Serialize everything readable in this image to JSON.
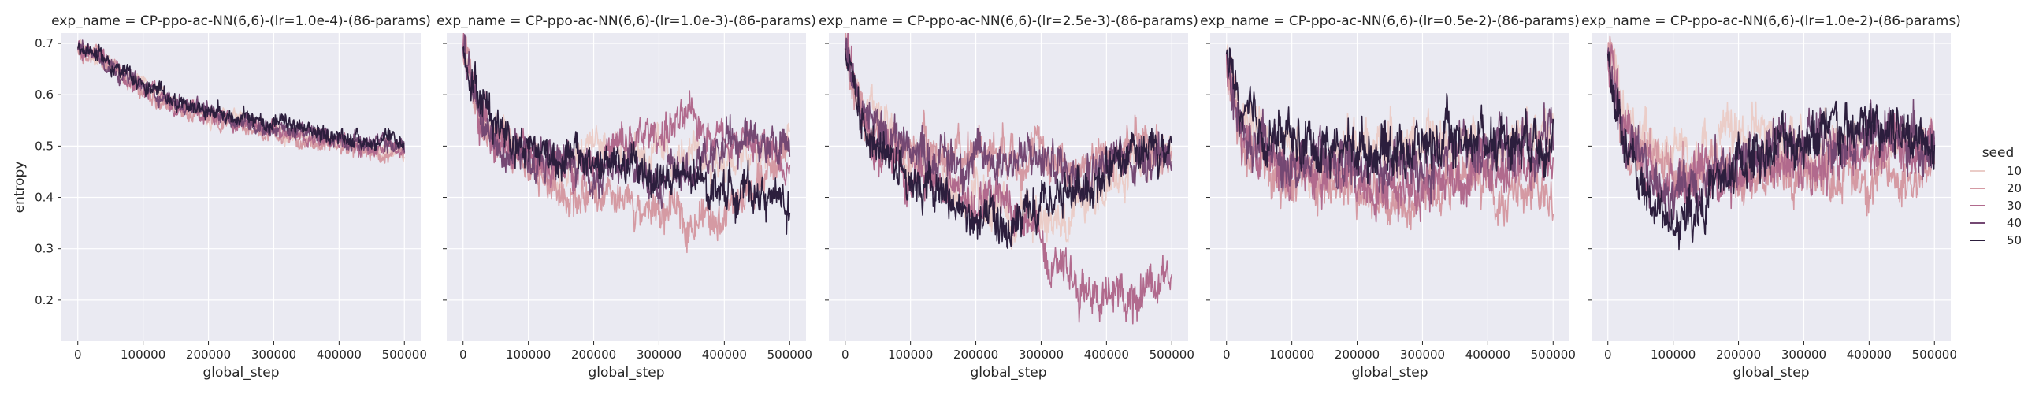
{
  "chart_data": {
    "type": "line",
    "figure": "faceted line plot (seaborn relplot)",
    "xlabel": "global_step",
    "ylabel": "entropy",
    "xlim": [
      -25000,
      525000
    ],
    "ylim": [
      0.12,
      0.72
    ],
    "x_ticks": [
      0,
      100000,
      200000,
      300000,
      400000,
      500000
    ],
    "x_tick_labels": [
      "0",
      "100000",
      "200000",
      "300000",
      "400000",
      "500000"
    ],
    "y_ticks": [
      0.2,
      0.3,
      0.4,
      0.5,
      0.6,
      0.7
    ],
    "y_tick_labels": [
      "0.2",
      "0.3",
      "0.4",
      "0.5",
      "0.6",
      "0.7"
    ],
    "grid": true,
    "legend": {
      "title": "seed",
      "placement": "right",
      "entries": [
        {
          "label": "10",
          "color": "#ebcdc8"
        },
        {
          "label": "20",
          "color": "#d59aa3"
        },
        {
          "label": "30",
          "color": "#b16a8d"
        },
        {
          "label": "40",
          "color": "#744873"
        },
        {
          "label": "50",
          "color": "#2c1e3d"
        }
      ]
    },
    "x": [
      0,
      25000,
      50000,
      75000,
      100000,
      150000,
      200000,
      250000,
      300000,
      350000,
      400000,
      450000,
      500000
    ],
    "panels": [
      {
        "title": "exp_name = CP-ppo-ac-NN(6,6)-(lr=1.0e-4)-(86-params)",
        "noise": 0.015,
        "series": [
          {
            "seed": "10",
            "values": [
              0.69,
              0.68,
              0.655,
              0.635,
              0.615,
              0.585,
              0.56,
              0.55,
              0.535,
              0.52,
              0.505,
              0.495,
              0.49
            ]
          },
          {
            "seed": "20",
            "values": [
              0.69,
              0.68,
              0.65,
              0.625,
              0.605,
              0.575,
              0.555,
              0.54,
              0.525,
              0.51,
              0.5,
              0.485,
              0.475
            ]
          },
          {
            "seed": "30",
            "values": [
              0.69,
              0.68,
              0.655,
              0.63,
              0.61,
              0.58,
              0.56,
              0.545,
              0.53,
              0.515,
              0.505,
              0.495,
              0.49
            ]
          },
          {
            "seed": "40",
            "values": [
              0.69,
              0.685,
              0.66,
              0.635,
              0.615,
              0.585,
              0.565,
              0.55,
              0.535,
              0.525,
              0.515,
              0.505,
              0.5
            ]
          },
          {
            "seed": "50",
            "values": [
              0.69,
              0.685,
              0.66,
              0.64,
              0.62,
              0.59,
              0.57,
              0.555,
              0.545,
              0.53,
              0.52,
              0.51,
              0.505
            ]
          }
        ]
      },
      {
        "title": "exp_name = CP-ppo-ac-NN(6,6)-(lr=1.0e-3)-(86-params)",
        "noise": 0.035,
        "series": [
          {
            "seed": "10",
            "values": [
              0.69,
              0.58,
              0.53,
              0.5,
              0.48,
              0.47,
              0.5,
              0.5,
              0.48,
              0.47,
              0.47,
              0.48,
              0.5
            ]
          },
          {
            "seed": "20",
            "values": [
              0.69,
              0.55,
              0.5,
              0.48,
              0.45,
              0.42,
              0.39,
              0.38,
              0.37,
              0.36,
              0.37,
              0.42,
              0.5
            ]
          },
          {
            "seed": "30",
            "values": [
              0.69,
              0.56,
              0.52,
              0.49,
              0.47,
              0.46,
              0.48,
              0.5,
              0.53,
              0.55,
              0.52,
              0.5,
              0.48
            ]
          },
          {
            "seed": "40",
            "values": [
              0.69,
              0.57,
              0.52,
              0.5,
              0.48,
              0.46,
              0.45,
              0.45,
              0.44,
              0.45,
              0.5,
              0.52,
              0.5
            ]
          },
          {
            "seed": "50",
            "values": [
              0.69,
              0.6,
              0.55,
              0.52,
              0.5,
              0.48,
              0.47,
              0.46,
              0.44,
              0.43,
              0.42,
              0.41,
              0.38
            ]
          }
        ]
      },
      {
        "title": "exp_name = CP-ppo-ac-NN(6,6)-(lr=2.5e-3)-(86-params)",
        "noise": 0.04,
        "series": [
          {
            "seed": "10",
            "values": [
              0.69,
              0.58,
              0.55,
              0.52,
              0.48,
              0.44,
              0.4,
              0.37,
              0.36,
              0.38,
              0.42,
              0.46,
              0.5
            ]
          },
          {
            "seed": "20",
            "values": [
              0.69,
              0.56,
              0.52,
              0.5,
              0.49,
              0.48,
              0.5,
              0.5,
              0.48,
              0.46,
              0.48,
              0.5,
              0.5
            ]
          },
          {
            "seed": "30",
            "values": [
              0.69,
              0.55,
              0.5,
              0.48,
              0.45,
              0.42,
              0.4,
              0.38,
              0.32,
              0.25,
              0.2,
              0.22,
              0.28
            ]
          },
          {
            "seed": "40",
            "values": [
              0.69,
              0.57,
              0.53,
              0.52,
              0.5,
              0.48,
              0.47,
              0.48,
              0.47,
              0.46,
              0.47,
              0.48,
              0.5
            ]
          },
          {
            "seed": "50",
            "values": [
              0.69,
              0.55,
              0.5,
              0.48,
              0.45,
              0.4,
              0.35,
              0.33,
              0.37,
              0.42,
              0.45,
              0.47,
              0.5
            ]
          }
        ]
      },
      {
        "title": "exp_name = CP-ppo-ac-NN(6,6)-(lr=0.5e-2)-(86-params)",
        "noise": 0.045,
        "series": [
          {
            "seed": "10",
            "values": [
              0.68,
              0.55,
              0.52,
              0.5,
              0.49,
              0.48,
              0.5,
              0.5,
              0.5,
              0.5,
              0.5,
              0.51,
              0.52
            ]
          },
          {
            "seed": "20",
            "values": [
              0.68,
              0.5,
              0.48,
              0.45,
              0.43,
              0.42,
              0.41,
              0.4,
              0.42,
              0.43,
              0.42,
              0.4,
              0.4
            ]
          },
          {
            "seed": "30",
            "values": [
              0.68,
              0.52,
              0.49,
              0.47,
              0.45,
              0.44,
              0.44,
              0.42,
              0.43,
              0.44,
              0.45,
              0.45,
              0.47
            ]
          },
          {
            "seed": "40",
            "values": [
              0.68,
              0.53,
              0.5,
              0.49,
              0.48,
              0.47,
              0.46,
              0.45,
              0.47,
              0.49,
              0.5,
              0.5,
              0.52
            ]
          },
          {
            "seed": "50",
            "values": [
              0.68,
              0.55,
              0.53,
              0.52,
              0.51,
              0.5,
              0.5,
              0.5,
              0.5,
              0.51,
              0.52,
              0.52,
              0.53
            ]
          }
        ]
      },
      {
        "title": "exp_name = CP-ppo-ac-NN(6,6)-(lr=1.0e-2)-(86-params)",
        "noise": 0.045,
        "series": [
          {
            "seed": "10",
            "values": [
              0.68,
              0.55,
              0.52,
              0.5,
              0.5,
              0.5,
              0.52,
              0.52,
              0.5,
              0.51,
              0.5,
              0.5,
              0.52
            ]
          },
          {
            "seed": "20",
            "values": [
              0.68,
              0.52,
              0.49,
              0.47,
              0.46,
              0.45,
              0.45,
              0.44,
              0.45,
              0.45,
              0.44,
              0.44,
              0.45
            ]
          },
          {
            "seed": "30",
            "values": [
              0.68,
              0.52,
              0.48,
              0.46,
              0.45,
              0.45,
              0.46,
              0.47,
              0.47,
              0.48,
              0.48,
              0.48,
              0.48
            ]
          },
          {
            "seed": "40",
            "values": [
              0.68,
              0.5,
              0.45,
              0.42,
              0.42,
              0.44,
              0.47,
              0.5,
              0.52,
              0.53,
              0.52,
              0.52,
              0.5
            ]
          },
          {
            "seed": "50",
            "values": [
              0.68,
              0.5,
              0.42,
              0.38,
              0.34,
              0.4,
              0.46,
              0.5,
              0.52,
              0.52,
              0.53,
              0.53,
              0.53
            ]
          }
        ]
      }
    ]
  }
}
